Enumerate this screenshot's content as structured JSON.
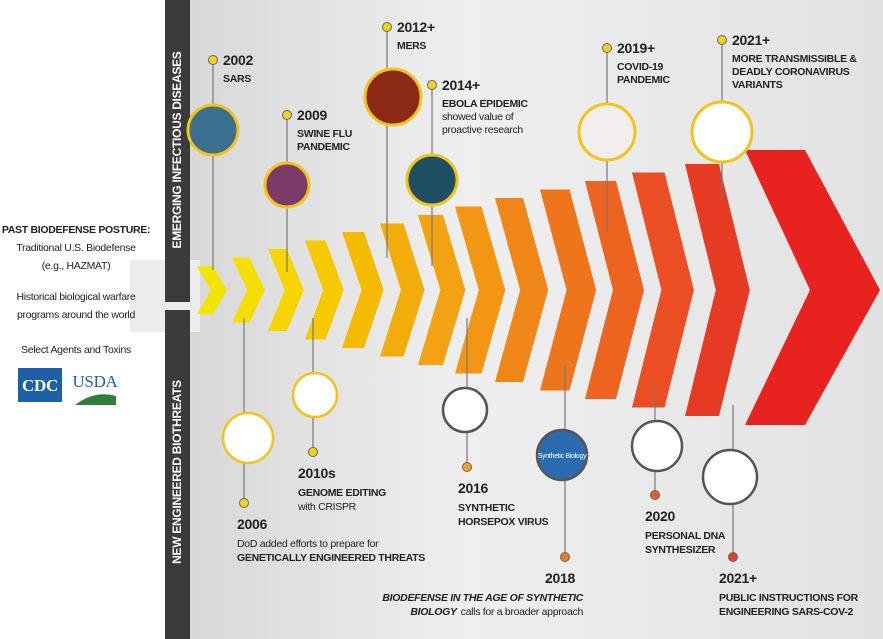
{
  "left_panel": {
    "heading": "PAST BIODEFENSE POSTURE:",
    "lines": [
      "Traditional U.S. Biodefense",
      "(e.g., HAZMAT)",
      "Historical biological warfare",
      "programs around the world",
      "Select Agents and Toxins"
    ],
    "logos": [
      "CDC",
      "USDA"
    ]
  },
  "bands": {
    "top": "EMERGING INFECTIOUS DISEASES",
    "bottom": "NEW ENGINEERED BIOTHREATS"
  },
  "top_events": [
    {
      "year": "2002",
      "lines": [
        "SARS"
      ]
    },
    {
      "year": "2009",
      "lines": [
        "SWINE FLU",
        "PANDEMIC"
      ]
    },
    {
      "year": "2012+",
      "lines": [
        "MERS"
      ]
    },
    {
      "year": "2014+",
      "lines": [
        "EBOLA EPIDEMIC",
        "showed value of",
        "proactive research"
      ]
    },
    {
      "year": "2019+",
      "lines": [
        "COVID-19",
        "PANDEMIC"
      ]
    },
    {
      "year": "2021+",
      "lines": [
        "MORE TRANSMISSIBLE &",
        "DEADLY CORONAVIRUS",
        "VARIANTS"
      ]
    }
  ],
  "bottom_events": [
    {
      "year": "2006",
      "lines": [
        "DoD added efforts to prepare for",
        "GENETICALLY ENGINEERED THREATS"
      ]
    },
    {
      "year": "2010s",
      "lines": [
        "GENOME EDITING",
        "with CRISPR"
      ]
    },
    {
      "year": "2016",
      "lines": [
        "SYNTHETIC",
        "HORSEPOX VIRUS"
      ]
    },
    {
      "year": "2018",
      "emphasis": [
        "BIODEFENSE IN THE AGE OF SYNTHETIC",
        "BIOLOGY"
      ],
      "lines": [
        "calls for a broader approach"
      ],
      "icon_text": "Synthetic Biology"
    },
    {
      "year": "2020",
      "lines": [
        "PERSONAL DNA",
        "SYNTHESIZER"
      ]
    },
    {
      "year": "2021+",
      "lines": [
        "PUBLIC INSTRUCTIONS FOR",
        "ENGINEERING SARS-COV-2"
      ]
    }
  ]
}
